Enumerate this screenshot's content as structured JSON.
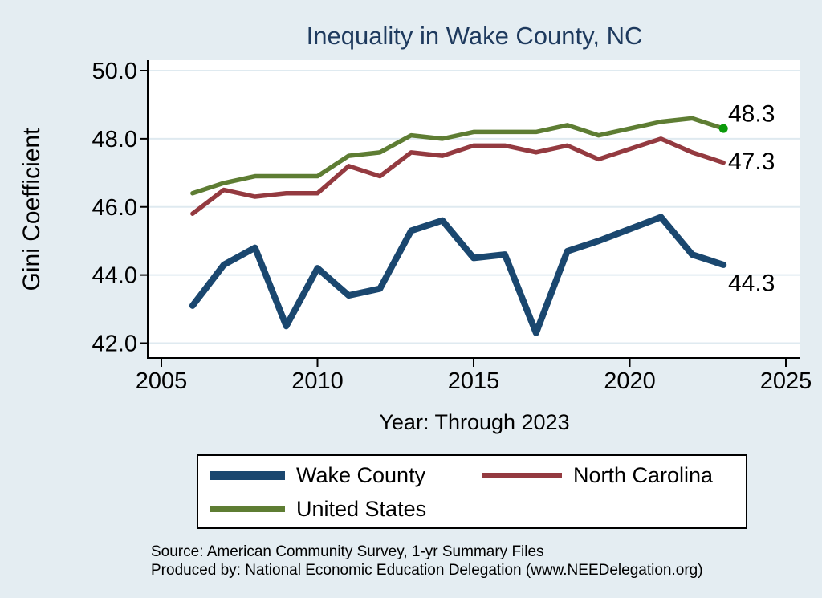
{
  "chart_data": {
    "type": "line",
    "title": "Inequality in Wake County, NC",
    "xlabel": "Year: Through 2023",
    "ylabel": "Gini Coefficient",
    "xlim": [
      2005,
      2025
    ],
    "ylim": [
      42,
      50
    ],
    "x_ticks": [
      2005,
      2010,
      2015,
      2020,
      2025
    ],
    "y_ticks": [
      50,
      48,
      46,
      44,
      42
    ],
    "grid": true,
    "legend_position": "bottom",
    "x": [
      2006,
      2007,
      2008,
      2009,
      2010,
      2011,
      2012,
      2013,
      2014,
      2015,
      2016,
      2017,
      2018,
      2019,
      2021,
      2022,
      2023
    ],
    "series": [
      {
        "name": "Wake County",
        "color": "#1a476f",
        "line_width": 8,
        "values": [
          43.1,
          44.3,
          44.8,
          42.5,
          44.2,
          43.4,
          43.6,
          45.3,
          45.6,
          44.5,
          44.6,
          42.3,
          44.7,
          45.0,
          45.7,
          44.6,
          44.3
        ],
        "end_label": "44.3"
      },
      {
        "name": "North Carolina",
        "color": "#943a40",
        "line_width": 5.5,
        "values": [
          45.8,
          46.5,
          46.3,
          46.4,
          46.4,
          47.2,
          46.9,
          47.6,
          47.5,
          47.8,
          47.8,
          47.6,
          47.8,
          47.4,
          48.0,
          47.6,
          47.3
        ],
        "end_label": "47.3"
      },
      {
        "name": "United States",
        "color": "#5e7d33",
        "line_width": 5.5,
        "values": [
          46.4,
          46.7,
          46.9,
          46.9,
          46.9,
          47.5,
          47.6,
          48.1,
          48.0,
          48.2,
          48.2,
          48.2,
          48.4,
          48.1,
          48.5,
          48.6,
          48.3
        ],
        "end_label": "48.3",
        "end_marker_color": "#0a9a0a"
      }
    ],
    "colors": {
      "background": "#e4edf2",
      "plot_background": "#ffffff",
      "gridline": "#dfeaf0",
      "axis": "#000000",
      "title": "#1e3a5e"
    }
  },
  "footer": {
    "source_line": "Source: American Community Survey, 1-yr Summary Files",
    "produced_line": "Produced by: National Economic Education Delegation (www.NEEDelegation.org)"
  }
}
